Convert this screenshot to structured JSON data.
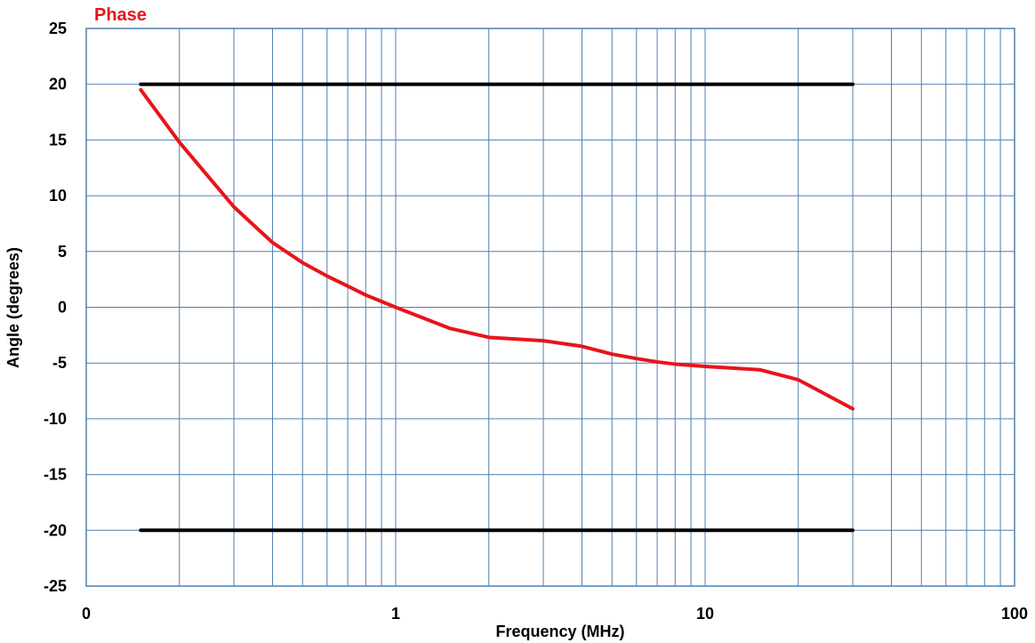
{
  "chart_data": {
    "type": "line",
    "title": "Phase",
    "title_color": "#e8141b",
    "xlabel": "Frequency (MHz)",
    "ylabel": "Angle (degrees)",
    "x_scale": "log",
    "xlim": [
      0.1,
      100
    ],
    "ylim": [
      -25,
      25
    ],
    "x_tick_labels": [
      "0",
      "1",
      "10",
      "100"
    ],
    "y_ticks": [
      25,
      20,
      15,
      10,
      5,
      0,
      -5,
      -10,
      -15,
      -20,
      -25
    ],
    "y_tick_labels": [
      "25",
      "20",
      "15",
      "10",
      "5",
      "0",
      "-5",
      "-10",
      "-15",
      "-20",
      "-25"
    ],
    "grid": true,
    "grid_color": "#4f7fb0",
    "series": [
      {
        "color": "#e8141b",
        "x": [
          0.15,
          0.2,
          0.3,
          0.4,
          0.5,
          0.6,
          0.7,
          0.8,
          1.0,
          1.5,
          2.0,
          3.0,
          4.0,
          5.0,
          6.0,
          7.0,
          8.0,
          10.0,
          15.0,
          20.0,
          30.0
        ],
        "y": [
          19.5,
          14.8,
          9.0,
          5.8,
          4.0,
          2.8,
          1.9,
          1.1,
          0.0,
          -1.9,
          -2.7,
          -3.0,
          -3.5,
          -4.2,
          -4.6,
          -4.9,
          -5.1,
          -5.3,
          -5.6,
          -6.5,
          -9.1
        ]
      },
      {
        "color": "#000000",
        "x": [
          0.15,
          30
        ],
        "y": [
          20,
          20
        ]
      },
      {
        "color": "#000000",
        "x": [
          0.15,
          30
        ],
        "y": [
          -20,
          -20
        ]
      }
    ]
  }
}
